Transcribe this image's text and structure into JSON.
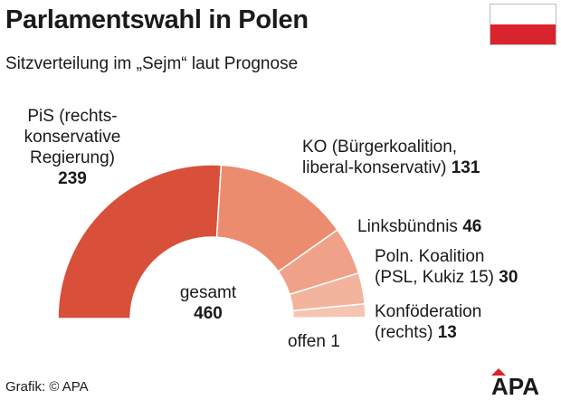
{
  "header": {
    "title": "Parlamentswahl in Polen",
    "subtitle": "Sitzverteilung im „Sejm“ laut Prognose"
  },
  "flag": {
    "top_color": "#ffffff",
    "bottom_color": "#d9242e"
  },
  "chart_data": {
    "type": "pie",
    "subtype": "half-donut",
    "total_label": "gesamt",
    "total": 460,
    "slices": [
      {
        "label_lines": [
          "PiS (rechts-",
          "konservative",
          "Regierung)"
        ],
        "value": 239,
        "color": "#d9503a"
      },
      {
        "label_lines": [
          "KO (Bürgerkoalition,",
          "liberal-konservativ)"
        ],
        "value": 131,
        "color": "#ec8c6f"
      },
      {
        "label_lines": [
          "Linksbündnis"
        ],
        "value": 46,
        "color": "#f0a288"
      },
      {
        "label_lines": [
          "Poln. Koalition",
          "(PSL, Kukiz 15)"
        ],
        "value": 30,
        "color": "#f3b49e"
      },
      {
        "label_lines": [
          "Konföderation",
          "(rechts)"
        ],
        "value": 13,
        "color": "#f6c5b2"
      },
      {
        "label_lines": [
          "offen"
        ],
        "value": 1,
        "color": "#fadcd0"
      }
    ]
  },
  "footer": {
    "credit": "Grafik: © APA",
    "logo_text": "APA",
    "logo_color": "#d9242e"
  }
}
